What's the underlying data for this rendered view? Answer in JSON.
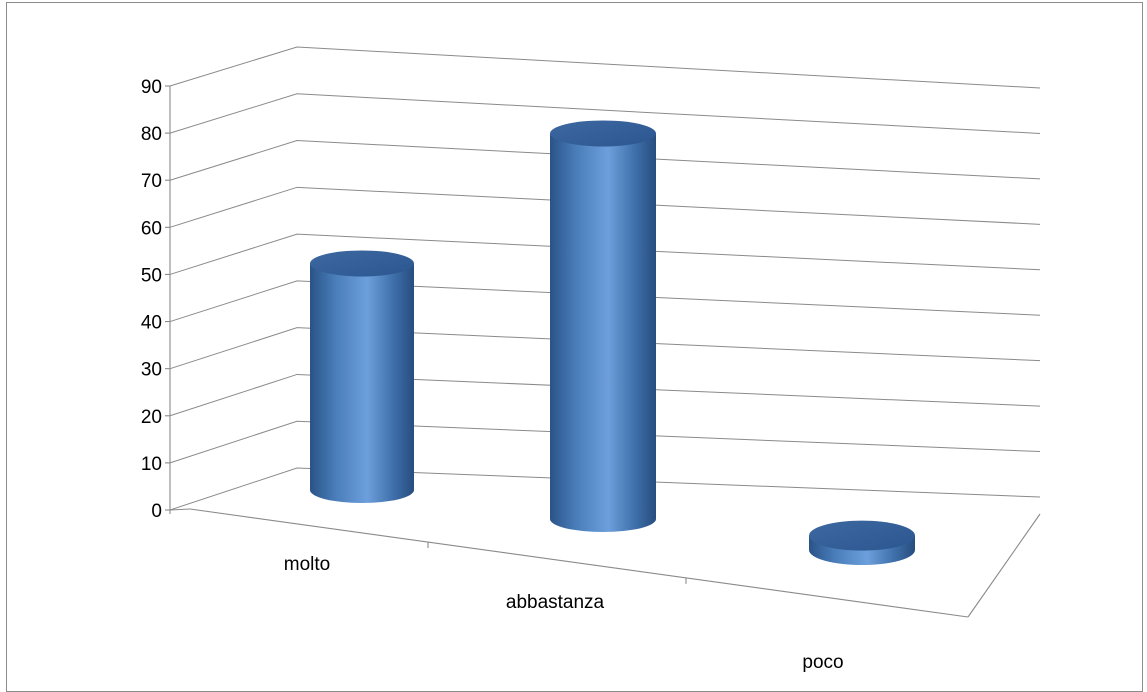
{
  "chart_data": {
    "type": "bar",
    "style": "3d-cylinder",
    "categories": [
      "molto",
      "abbastanza",
      "poco"
    ],
    "values": [
      48,
      81,
      3
    ],
    "ylim": [
      0,
      90
    ],
    "yticks": [
      0,
      10,
      20,
      30,
      40,
      50,
      60,
      70,
      80,
      90
    ],
    "ytick_labels": [
      "0",
      "10",
      "20",
      "30",
      "40",
      "50",
      "60",
      "70",
      "80",
      "90"
    ],
    "grid": true,
    "legend": false,
    "bar_color": "#4a7ebb"
  }
}
